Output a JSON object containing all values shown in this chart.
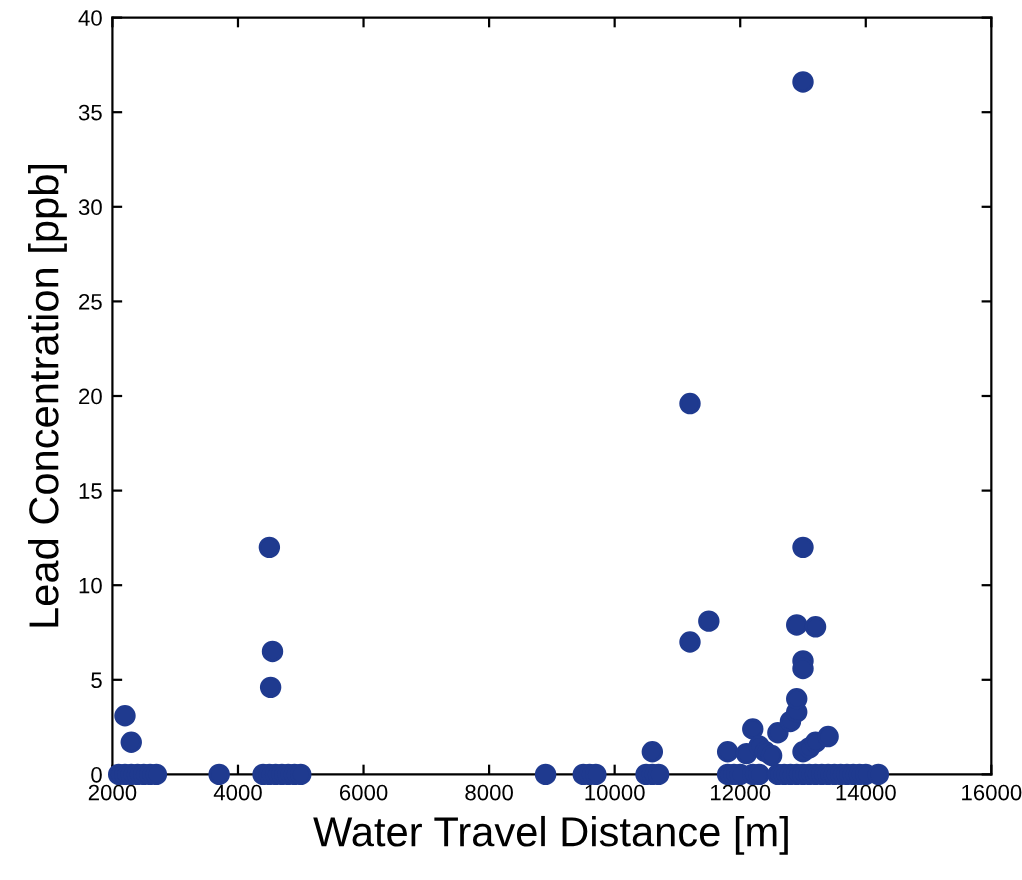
{
  "chart_data": {
    "type": "scatter",
    "xlabel": "Water Travel Distance [m]",
    "ylabel": "Lead Concentration [ppb]",
    "xlim": [
      2000,
      16000
    ],
    "xticks": [
      2000,
      4000,
      6000,
      8000,
      10000,
      12000,
      14000,
      16000
    ],
    "ylim": [
      0,
      40
    ],
    "yticks": [
      0,
      5,
      10,
      15,
      20,
      25,
      30,
      35,
      40
    ],
    "grid": false,
    "marker": "circle",
    "series": [
      {
        "color": "#1f3a8f",
        "x": [
          2100,
          2200,
          2300,
          2400,
          2500,
          2600,
          2700,
          2200,
          2300,
          3700,
          4400,
          4500,
          4600,
          4700,
          4800,
          4900,
          5000,
          4500,
          4550,
          4520,
          8900,
          9500,
          9600,
          9700,
          10500,
          10600,
          10700,
          10600,
          11200,
          11200,
          11500,
          11800,
          11900,
          12000,
          12200,
          12300,
          12600,
          12700,
          12800,
          12900,
          13000,
          13100,
          13200,
          13300,
          13400,
          13500,
          13600,
          13700,
          13800,
          13900,
          14000,
          14200,
          11800,
          12100,
          12200,
          12300,
          12400,
          12500,
          12600,
          12800,
          12900,
          12900,
          13000,
          13000,
          12900,
          13200,
          13000,
          13000,
          13000,
          13100,
          13200,
          13400
        ],
        "values": [
          0,
          0,
          0,
          0,
          0,
          0,
          0,
          3.1,
          1.7,
          0,
          0,
          0,
          0,
          0,
          0,
          0,
          0,
          12,
          6.5,
          4.6,
          0,
          0,
          0,
          0,
          0,
          0,
          0,
          1.2,
          19.6,
          7,
          8.1,
          0,
          0,
          0,
          0,
          0,
          0,
          0,
          0,
          0,
          0,
          0,
          0,
          0,
          0,
          0,
          0,
          0,
          0,
          0,
          0,
          0,
          1.2,
          1.1,
          2.4,
          1.5,
          1.2,
          1,
          2.2,
          2.8,
          3.3,
          4,
          36.6,
          12,
          7.9,
          7.8,
          6,
          5.6,
          1.2,
          1.4,
          1.7,
          2
        ]
      }
    ]
  }
}
